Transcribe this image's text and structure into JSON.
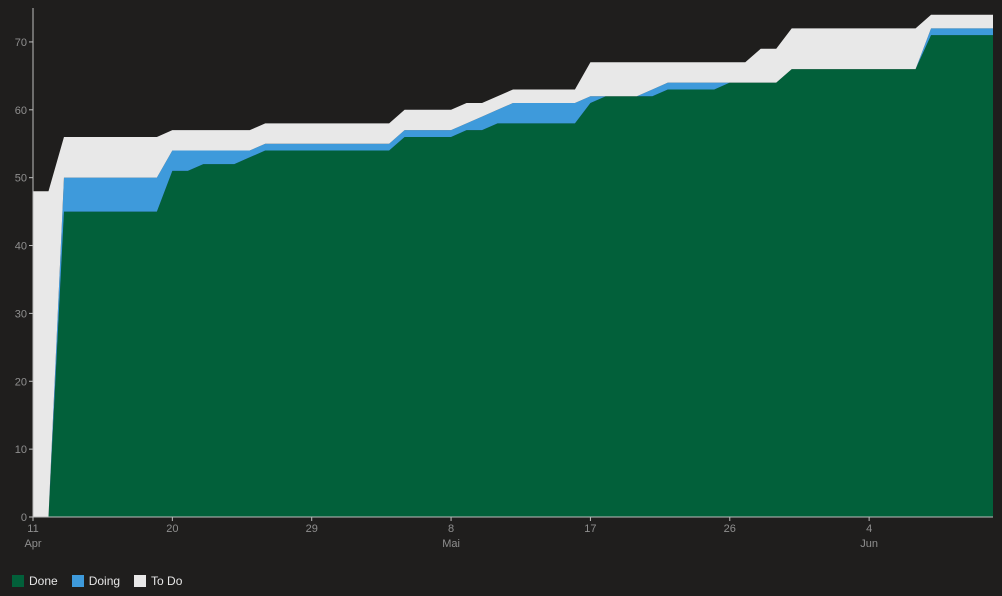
{
  "chart_data": {
    "type": "area",
    "stacked": true,
    "ylim": [
      0,
      75
    ],
    "yticks": [
      0,
      10,
      20,
      30,
      40,
      50,
      60,
      70
    ],
    "xlim": [
      "2024-04-11",
      "2024-06-12"
    ],
    "xticks": [
      {
        "date": "2024-04-11",
        "label": "11",
        "sub": "Apr"
      },
      {
        "date": "2024-04-20",
        "label": "20",
        "sub": ""
      },
      {
        "date": "2024-04-29",
        "label": "29",
        "sub": ""
      },
      {
        "date": "2024-05-08",
        "label": "8",
        "sub": "Mai"
      },
      {
        "date": "2024-05-17",
        "label": "17",
        "sub": ""
      },
      {
        "date": "2024-05-26",
        "label": "26",
        "sub": ""
      },
      {
        "date": "2024-06-04",
        "label": "4",
        "sub": "Jun"
      }
    ],
    "x": [
      "2024-04-11",
      "2024-04-12",
      "2024-04-13",
      "2024-04-19",
      "2024-04-20",
      "2024-04-21",
      "2024-04-22",
      "2024-04-24",
      "2024-04-25",
      "2024-04-26",
      "2024-05-04",
      "2024-05-05",
      "2024-05-07",
      "2024-05-08",
      "2024-05-09",
      "2024-05-10",
      "2024-05-11",
      "2024-05-12",
      "2024-05-16",
      "2024-05-17",
      "2024-05-18",
      "2024-05-20",
      "2024-05-21",
      "2024-05-22",
      "2024-05-23",
      "2024-05-25",
      "2024-05-26",
      "2024-05-27",
      "2024-05-28",
      "2024-05-29",
      "2024-05-30",
      "2024-05-31",
      "2024-06-01",
      "2024-06-02",
      "2024-06-07",
      "2024-06-08",
      "2024-06-12"
    ],
    "series": [
      {
        "name": "Done",
        "color": "#02603a",
        "values": [
          0,
          0,
          45,
          45,
          51,
          51,
          52,
          52,
          53,
          54,
          54,
          56,
          56,
          56,
          57,
          57,
          58,
          58,
          58,
          61,
          62,
          62,
          62,
          63,
          63,
          63,
          64,
          64,
          64,
          64,
          66,
          66,
          66,
          66,
          66,
          71,
          71
        ]
      },
      {
        "name": "Doing",
        "color": "#3e9adb",
        "values": [
          0,
          0,
          5,
          5,
          3,
          3,
          2,
          2,
          1,
          1,
          1,
          1,
          1,
          1,
          1,
          2,
          2,
          3,
          3,
          1,
          0,
          0,
          1,
          1,
          1,
          1,
          0,
          0,
          0,
          0,
          0,
          0,
          0,
          0,
          0,
          1,
          1
        ]
      },
      {
        "name": "To Do",
        "color": "#e8e8e8",
        "values": [
          48,
          48,
          6,
          6,
          3,
          3,
          3,
          3,
          3,
          3,
          3,
          3,
          3,
          3,
          3,
          2,
          2,
          2,
          2,
          5,
          5,
          5,
          4,
          3,
          3,
          3,
          3,
          3,
          5,
          5,
          6,
          6,
          6,
          6,
          6,
          2,
          2
        ]
      }
    ],
    "legend": [
      "Done",
      "Doing",
      "To Do"
    ],
    "legend_position": "bottom-left"
  }
}
